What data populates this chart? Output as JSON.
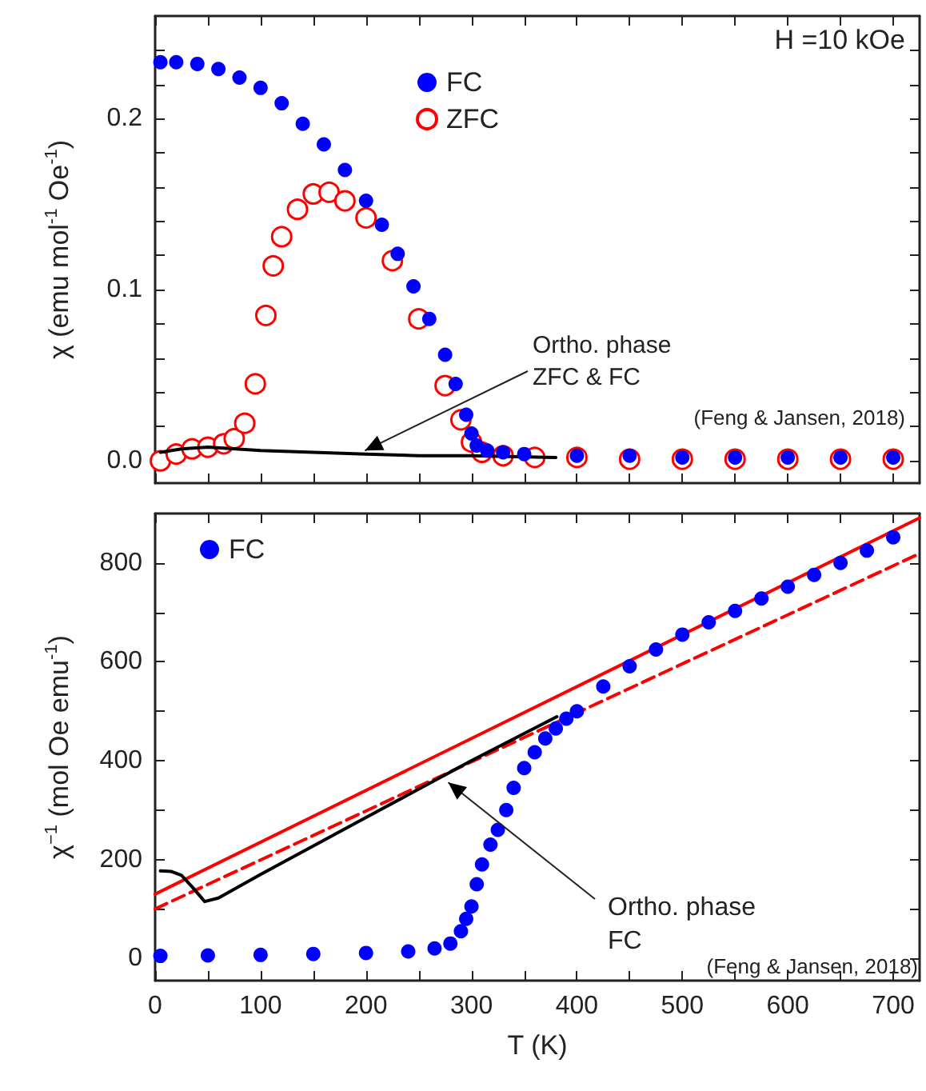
{
  "chart_data": [
    {
      "type": "scatter",
      "ylabel": "χ (emu mol$^{-1}$ Oe$^{-1}$)",
      "xlim": [
        0,
        725
      ],
      "xticks": [
        0,
        {
          "value": 50,
          "label": null
        },
        {
          "value": 100,
          "label": null
        },
        {
          "value": 150,
          "label": null
        },
        {
          "value": 200,
          "label": null
        },
        {
          "value": 250,
          "label": null
        },
        {
          "value": 300,
          "label": null
        },
        {
          "value": 350,
          "label": null
        },
        {
          "value": 400,
          "label": null
        },
        {
          "value": 450,
          "label": null
        },
        {
          "value": 500,
          "label": null
        },
        {
          "value": 550,
          "label": null
        },
        {
          "value": 600,
          "label": null
        },
        {
          "value": 650,
          "label": null
        },
        {
          "value": 700,
          "label": null
        }
      ],
      "ylim": [
        -0.013,
        0.26
      ],
      "yticks": [
        {
          "value": 0,
          "label": "0.0"
        },
        {
          "value": 0.02,
          "label": null
        },
        {
          "value": 0.04,
          "label": null
        },
        {
          "value": 0.06,
          "label": null
        },
        {
          "value": 0.08,
          "label": null
        },
        0.1,
        {
          "value": 0.12,
          "label": null
        },
        {
          "value": 0.14,
          "label": null
        },
        {
          "value": 0.16,
          "label": null
        },
        {
          "value": 0.18,
          "label": null
        },
        0.2,
        {
          "value": 0.22,
          "label": null
        },
        {
          "value": 0.24,
          "label": null
        }
      ],
      "tick_labels": "y",
      "grid": false,
      "legend": "top",
      "annotations": [
        "H =10 kOe",
        {
          "text": "Ortho. phase\nZFC & FC",
          "x": 199,
          "y": 0.006
        },
        "(Feng & Jansen, 2018)"
      ],
      "series": [
        {
          "name": "FC",
          "marker": "circle",
          "color": "#0000ff",
          "x": [
            5,
            20,
            40,
            60,
            80,
            100,
            120,
            140,
            160,
            180,
            200,
            215,
            230,
            245,
            260,
            275,
            285,
            295,
            300,
            305,
            315,
            330,
            350,
            400,
            450,
            500,
            550,
            600,
            650,
            700
          ],
          "values": [
            0.233,
            0.233,
            0.232,
            0.229,
            0.224,
            0.218,
            0.209,
            0.197,
            0.185,
            0.17,
            0.152,
            0.138,
            0.121,
            0.102,
            0.083,
            0.062,
            0.045,
            0.027,
            0.016,
            0.009,
            0.006,
            0.005,
            0.004,
            0.003,
            0.003,
            0.002,
            0.002,
            0.002,
            0.002,
            0.002
          ]
        },
        {
          "name": "ZFC",
          "marker": "circle",
          "color": "#ff0000",
          "x": [
            5,
            20,
            35,
            50,
            65,
            75,
            85,
            95,
            105,
            112,
            120,
            135,
            150,
            165,
            180,
            200,
            225,
            250,
            275,
            290,
            300,
            310,
            330,
            360,
            400,
            450,
            500,
            550,
            600,
            650,
            700
          ],
          "values": [
            0,
            0.004,
            0.007,
            0.008,
            0.01,
            0.013,
            0.022,
            0.045,
            0.085,
            0.114,
            0.131,
            0.147,
            0.156,
            0.157,
            0.152,
            0.142,
            0.117,
            0.083,
            0.044,
            0.024,
            0.011,
            0.005,
            0.003,
            0.002,
            0.002,
            0.001,
            0.001,
            0.001,
            0.001,
            0.001,
            0.001
          ]
        },
        {
          "type": "line",
          "marker": "none",
          "line_style": "solid",
          "color": "#000000",
          "x": [
            5,
            25,
            50,
            100,
            150,
            200,
            250,
            300,
            380
          ],
          "values": [
            0.005,
            0.007,
            0.008,
            0.006,
            0.005,
            0.004,
            0.003,
            0.003,
            0.002
          ]
        }
      ]
    },
    {
      "type": "scatter",
      "xlabel": "T (K)",
      "ylabel": "χ$^{−1}$ (mol Oe emu$^{-1}$)",
      "xlim": [
        0,
        725
      ],
      "xticks": [
        0,
        {
          "value": 50,
          "label": null
        },
        100,
        {
          "value": 150,
          "label": null
        },
        200,
        {
          "value": 250,
          "label": null
        },
        300,
        {
          "value": 350,
          "label": null
        },
        400,
        {
          "value": 450,
          "label": null
        },
        500,
        {
          "value": 550,
          "label": null
        },
        600,
        {
          "value": 650,
          "label": null
        },
        700
      ],
      "ylim": [
        -45,
        900
      ],
      "yticks": [
        0,
        {
          "value": 100,
          "label": null
        },
        200,
        {
          "value": 300,
          "label": null
        },
        400,
        {
          "value": 500,
          "label": null
        },
        600,
        {
          "value": 700,
          "label": null
        },
        800
      ],
      "grid": false,
      "legend": "top left",
      "annotations": [
        {
          "text": "Ortho. phase\nFC",
          "x": 278,
          "y": 356
        },
        "(Feng & Jansen, 2018)"
      ],
      "series": [
        {
          "name": "FC",
          "marker": "circle",
          "color": "#0000ff",
          "x": [
            5,
            50,
            100,
            150,
            200,
            240,
            265,
            280,
            290,
            295,
            300,
            305,
            310,
            318,
            325,
            333,
            340,
            350,
            360,
            370,
            380,
            390,
            400,
            425,
            450,
            475,
            500,
            525,
            550,
            575,
            600,
            625,
            650,
            675,
            700
          ],
          "values": [
            5,
            6,
            7,
            9,
            11,
            14,
            20,
            30,
            55,
            80,
            105,
            150,
            190,
            230,
            260,
            300,
            345,
            385,
            417,
            445,
            465,
            485,
            500,
            550,
            591,
            625,
            655,
            680,
            703,
            728,
            752,
            776,
            800,
            825,
            852
          ]
        },
        {
          "type": "line",
          "marker": "none",
          "line_style": "solid",
          "color": "#ff0000",
          "x": [
            0,
            725
          ],
          "values": [
            130,
            891
          ]
        },
        {
          "type": "line",
          "marker": "none",
          "line_style": "dashed",
          "color": "#ff0000",
          "x": [
            0,
            725
          ],
          "values": [
            100,
            819
          ]
        },
        {
          "type": "line",
          "marker": "none",
          "line_style": "solid",
          "color": "#000000",
          "x": [
            5,
            15,
            25,
            35,
            47,
            60,
            100,
            200,
            300,
            381
          ],
          "values": [
            177,
            176,
            168,
            145,
            115,
            122,
            170,
            285,
            400,
            489
          ]
        }
      ]
    }
  ]
}
